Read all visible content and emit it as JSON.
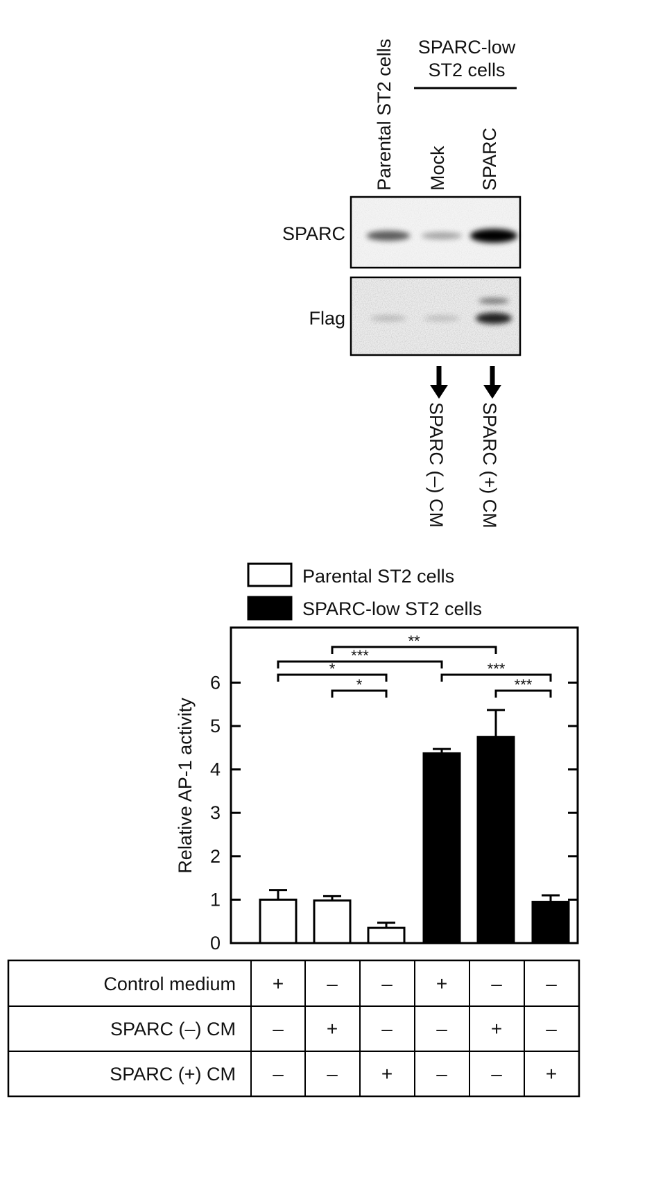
{
  "blot": {
    "lanes": [
      "Parental ST2 cells",
      "Mock",
      "SPARC"
    ],
    "group_label": [
      "SPARC-low",
      "ST2 cells"
    ],
    "rows": [
      "SPARC",
      "Flag"
    ],
    "band_intensity": {
      "SPARC": [
        0.55,
        0.2,
        1.0
      ],
      "Flag": [
        0.12,
        0.1,
        0.85
      ]
    },
    "arrow_labels": [
      "SPARC (–) CM",
      "SPARC (+) CM"
    ]
  },
  "legend": [
    {
      "name": "Parental ST2 cells",
      "fill": "#ffffff"
    },
    {
      "name": "SPARC-low ST2 cells",
      "fill": "#000000"
    }
  ],
  "chart_data": {
    "type": "bar",
    "ylabel": "Relative AP-1 activity",
    "ylim": [
      0,
      6.8
    ],
    "yticks": [
      0,
      1,
      2,
      3,
      4,
      5,
      6
    ],
    "bars": [
      {
        "group": "Parental ST2 cells",
        "value": 1.0,
        "error": 0.22
      },
      {
        "group": "Parental ST2 cells",
        "value": 0.98,
        "error": 0.1
      },
      {
        "group": "Parental ST2 cells",
        "value": 0.35,
        "error": 0.12
      },
      {
        "group": "SPARC-low ST2 cells",
        "value": 4.37,
        "error": 0.1
      },
      {
        "group": "SPARC-low ST2 cells",
        "value": 4.75,
        "error": 0.62
      },
      {
        "group": "SPARC-low ST2 cells",
        "value": 0.95,
        "error": 0.15
      }
    ],
    "significance": [
      {
        "from": 2,
        "to": 5,
        "label": "**"
      },
      {
        "from": 1,
        "to": 4,
        "label": "***"
      },
      {
        "from": 1,
        "to": 3,
        "label": "*"
      },
      {
        "from": 4,
        "to": 6,
        "label": "***"
      },
      {
        "from": 2,
        "to": 3,
        "label": "*"
      },
      {
        "from": 5,
        "to": 6,
        "label": "***"
      }
    ]
  },
  "conditions": {
    "rows": [
      {
        "label": "Control medium",
        "values": [
          "+",
          "–",
          "–",
          "+",
          "–",
          "–"
        ]
      },
      {
        "label": "SPARC (–) CM",
        "values": [
          "–",
          "+",
          "–",
          "–",
          "+",
          "–"
        ]
      },
      {
        "label": "SPARC (+) CM",
        "values": [
          "–",
          "–",
          "+",
          "–",
          "–",
          "+"
        ]
      }
    ]
  }
}
